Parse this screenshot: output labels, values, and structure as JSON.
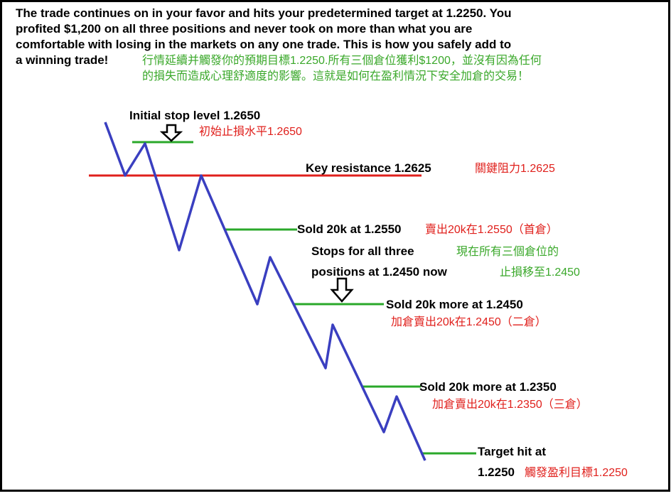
{
  "header": {
    "lines": [
      "The trade continues on in your favor and hits your predetermined target at 1.2250. You",
      "profited $1,200 on all three positions and never took on more than what you are",
      "comfortable with losing in the markets on any one trade. This is how you safely add to",
      "a winning trade!"
    ],
    "zh": [
      "行情延續并觸發你的預期目標1.2250.所有三個倉位獲利$1200，並沒有因為任何",
      "的損失而造成心理舒適度的影響。這就是如何在盈利情況下安全加倉的交易！"
    ]
  },
  "annotations": {
    "stop": {
      "en": "Initial stop level 1.2650",
      "zh": "初始止損水平1.2650"
    },
    "resistance": {
      "en": "Key resistance 1.2625",
      "zh": "關鍵阻力1.2625"
    },
    "sold1": {
      "en": "Sold 20k at 1.2550",
      "zh": "賣出20k在1.2550（首倉）"
    },
    "stops": {
      "en": [
        "Stops for all three",
        "positions at 1.2450 now"
      ],
      "zh": [
        "現在所有三個倉位的",
        "止損移至1.2450"
      ]
    },
    "sold2": {
      "en": "Sold 20k more at 1.2450",
      "zh": "加倉賣出20k在1.2450（二倉）"
    },
    "sold3": {
      "en": "Sold 20k more at 1.2350",
      "zh": "加倉賣出20k在1.2350（三倉）"
    },
    "target": {
      "en": [
        "Target hit at",
        "1.2250"
      ],
      "zh": "觸發盈利目標1.2250"
    }
  }
}
